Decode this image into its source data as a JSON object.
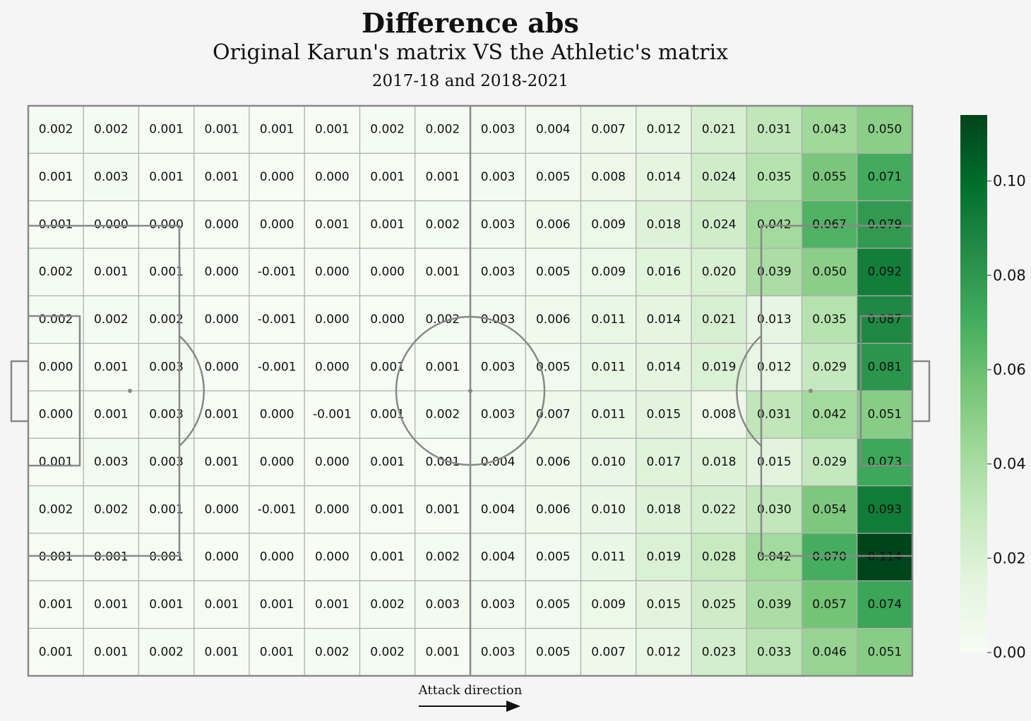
{
  "title": "Difference abs",
  "subtitle": "Original Karun's matrix VS the Athletic's matrix",
  "seasons": "2017-18 and 2018-2021",
  "attack_label": "Attack direction",
  "colorbar": {
    "ticks": [
      "0.00",
      "0.02",
      "0.04",
      "0.06",
      "0.08",
      "0.10"
    ],
    "tick_values": [
      0.0,
      0.02,
      0.04,
      0.06,
      0.08,
      0.1
    ],
    "range": [
      0.0,
      0.114
    ],
    "colormap": "Greens",
    "colors": [
      "#f7fcf5",
      "#e5f5e0",
      "#c7e9c0",
      "#a1d99b",
      "#74c476",
      "#41ab5d",
      "#238b45",
      "#006d2c",
      "#00441b"
    ]
  },
  "pitch_line_color": "#888888",
  "chart_data": {
    "type": "heatmap",
    "title": "Difference abs",
    "subtitle": "Original Karun's matrix VS the Athletic's matrix",
    "value_range": [
      0.0,
      0.114
    ],
    "values": [
      [
        "0.002",
        "0.002",
        "0.001",
        "0.001",
        "0.001",
        "0.001",
        "0.002",
        "0.002",
        "0.003",
        "0.004",
        "0.007",
        "0.012",
        "0.021",
        "0.031",
        "0.043",
        "0.050"
      ],
      [
        "0.001",
        "0.003",
        "0.001",
        "0.001",
        "0.000",
        "0.000",
        "0.001",
        "0.001",
        "0.003",
        "0.005",
        "0.008",
        "0.014",
        "0.024",
        "0.035",
        "0.055",
        "0.071"
      ],
      [
        "0.001",
        "0.000",
        "0.000",
        "0.000",
        "0.000",
        "0.001",
        "0.001",
        "0.002",
        "0.003",
        "0.006",
        "0.009",
        "0.018",
        "0.024",
        "0.042",
        "0.067",
        "0.079"
      ],
      [
        "0.002",
        "0.001",
        "0.001",
        "0.000",
        "-0.001",
        "0.000",
        "0.000",
        "0.001",
        "0.003",
        "0.005",
        "0.009",
        "0.016",
        "0.020",
        "0.039",
        "0.050",
        "0.092"
      ],
      [
        "0.002",
        "0.002",
        "0.002",
        "0.000",
        "-0.001",
        "0.000",
        "0.000",
        "0.002",
        "0.003",
        "0.006",
        "0.011",
        "0.014",
        "0.021",
        "0.013",
        "0.035",
        "0.087"
      ],
      [
        "0.000",
        "0.001",
        "0.003",
        "0.000",
        "-0.001",
        "0.000",
        "0.001",
        "0.001",
        "0.003",
        "0.005",
        "0.011",
        "0.014",
        "0.019",
        "0.012",
        "0.029",
        "0.081"
      ],
      [
        "0.000",
        "0.001",
        "0.003",
        "0.001",
        "0.000",
        "-0.001",
        "0.001",
        "0.002",
        "0.003",
        "0.007",
        "0.011",
        "0.015",
        "0.008",
        "0.031",
        "0.042",
        "0.051"
      ],
      [
        "0.001",
        "0.003",
        "0.003",
        "0.001",
        "0.000",
        "0.000",
        "0.001",
        "0.001",
        "0.004",
        "0.006",
        "0.010",
        "0.017",
        "0.018",
        "0.015",
        "0.029",
        "0.073"
      ],
      [
        "0.002",
        "0.002",
        "0.001",
        "0.000",
        "-0.001",
        "0.000",
        "0.001",
        "0.001",
        "0.004",
        "0.006",
        "0.010",
        "0.018",
        "0.022",
        "0.030",
        "0.054",
        "0.093"
      ],
      [
        "0.001",
        "0.001",
        "0.001",
        "0.000",
        "0.000",
        "0.000",
        "0.001",
        "0.002",
        "0.004",
        "0.005",
        "0.011",
        "0.019",
        "0.028",
        "0.042",
        "0.070",
        "0.114"
      ],
      [
        "0.001",
        "0.001",
        "0.001",
        "0.001",
        "0.001",
        "0.001",
        "0.002",
        "0.003",
        "0.003",
        "0.005",
        "0.009",
        "0.015",
        "0.025",
        "0.039",
        "0.057",
        "0.074"
      ],
      [
        "0.001",
        "0.001",
        "0.002",
        "0.001",
        "0.001",
        "0.002",
        "0.002",
        "0.001",
        "0.003",
        "0.005",
        "0.007",
        "0.012",
        "0.023",
        "0.033",
        "0.046",
        "0.051"
      ]
    ]
  }
}
